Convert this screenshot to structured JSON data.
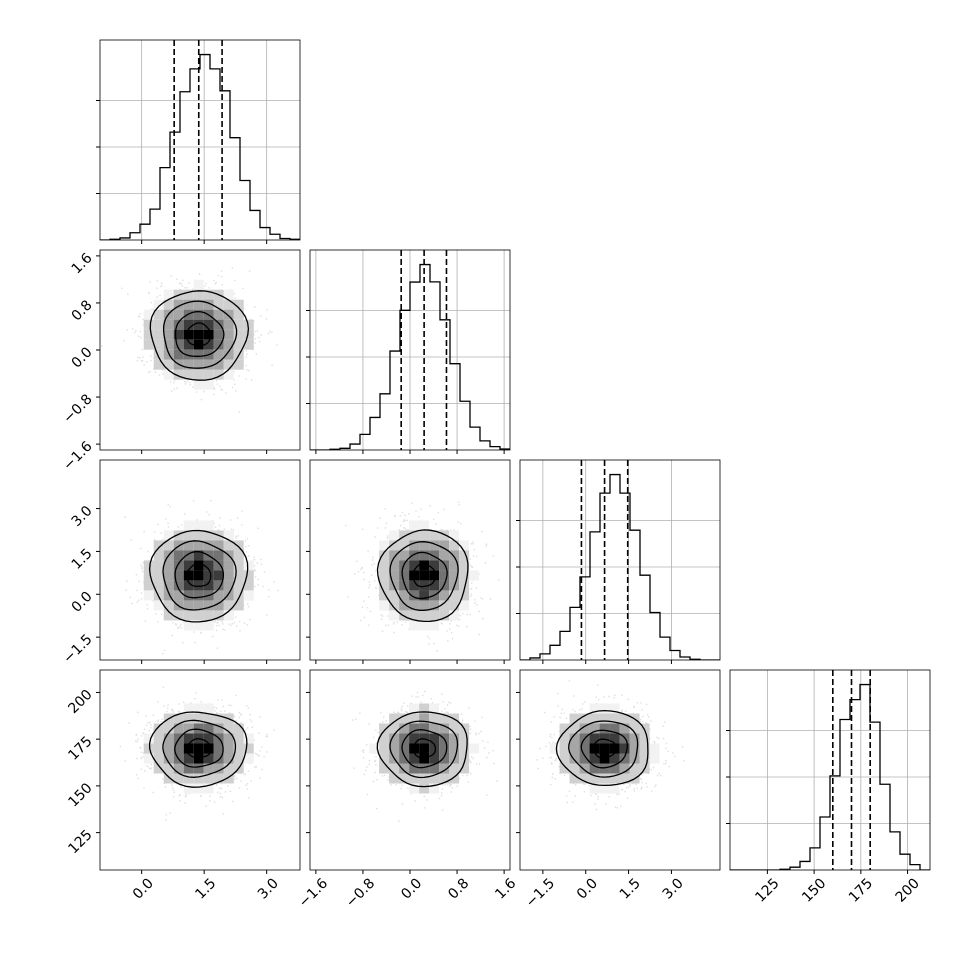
{
  "chart_data": {
    "type": "corner",
    "parameters": [
      {
        "range": [
          -1.0,
          3.8
        ],
        "ticks": [
          0.0,
          1.5,
          3.0
        ],
        "tick_labels": [
          "0.0",
          "1.5",
          "3.0"
        ],
        "quantiles": [
          0.78,
          1.37,
          1.93
        ],
        "hist_bins": [
          -1.0,
          -0.76,
          -0.52,
          -0.28,
          -0.04,
          0.2,
          0.44,
          0.68,
          0.92,
          1.16,
          1.4,
          1.64,
          1.88,
          2.12,
          2.36,
          2.6,
          2.84,
          3.08,
          3.32,
          3.56,
          3.8
        ],
        "hist_heights": [
          0.0,
          0.004,
          0.011,
          0.039,
          0.085,
          0.166,
          0.389,
          0.58,
          0.797,
          0.92,
          0.997,
          0.92,
          0.802,
          0.55,
          0.32,
          0.159,
          0.067,
          0.031,
          0.008,
          0.004
        ],
        "hist_yticks": [
          0.25,
          0.5,
          0.75
        ]
      },
      {
        "range": [
          -1.7,
          1.7
        ],
        "ticks": [
          -1.6,
          -0.8,
          0.0,
          0.8,
          1.6
        ],
        "tick_labels": [
          "−1.6",
          "−0.8",
          "0.0",
          "0.8",
          "1.6"
        ],
        "quantiles": [
          -0.15,
          0.24,
          0.62
        ],
        "hist_bins": [
          -1.7,
          -1.53,
          -1.36,
          -1.19,
          -1.02,
          -0.85,
          -0.68,
          -0.51,
          -0.34,
          -0.17,
          0.0,
          0.17,
          0.34,
          0.51,
          0.68,
          0.85,
          1.02,
          1.19,
          1.36,
          1.53,
          1.7
        ],
        "hist_heights": [
          0.0,
          0.0,
          0.004,
          0.009,
          0.032,
          0.084,
          0.175,
          0.302,
          0.532,
          0.751,
          0.903,
          0.997,
          0.904,
          0.7,
          0.464,
          0.262,
          0.123,
          0.049,
          0.018,
          0.005
        ],
        "hist_yticks": [
          0.25,
          0.5,
          0.75
        ]
      },
      {
        "range": [
          -2.3,
          4.7
        ],
        "ticks": [
          -1.5,
          0.0,
          1.5,
          3.0
        ],
        "tick_labels": [
          "−1.5",
          "0.0",
          "1.5",
          "3.0"
        ],
        "quantiles": [
          -0.15,
          0.66,
          1.47
        ],
        "hist_bins": [
          -2.3,
          -1.95,
          -1.6,
          -1.25,
          -0.9,
          -0.55,
          -0.2,
          0.15,
          0.5,
          0.85,
          1.2,
          1.55,
          1.9,
          2.25,
          2.6,
          2.95,
          3.3,
          3.65,
          4.0,
          4.35,
          4.7
        ],
        "hist_heights": [
          0.0,
          0.011,
          0.033,
          0.079,
          0.154,
          0.283,
          0.447,
          0.689,
          0.897,
          0.997,
          0.897,
          0.698,
          0.456,
          0.255,
          0.123,
          0.051,
          0.016,
          0.004,
          0.0,
          0.0
        ],
        "hist_yticks": [
          0.25,
          0.5,
          0.75
        ]
      },
      {
        "range": [
          105,
          212
        ],
        "ticks": [
          125,
          150,
          175,
          200
        ],
        "tick_labels": [
          "125",
          "150",
          "175",
          "200"
        ],
        "quantiles": [
          160,
          170,
          180
        ],
        "hist_bins": [
          105,
          110.35,
          115.7,
          121.05,
          126.4,
          131.75,
          137.1,
          142.45,
          147.8,
          153.15,
          158.5,
          163.85,
          169.2,
          174.55,
          179.9,
          185.25,
          190.6,
          195.95,
          201.3,
          206.65,
          212
        ],
        "hist_heights": [
          0.0,
          0.0,
          0.0,
          0.0,
          0.0,
          0.004,
          0.015,
          0.046,
          0.119,
          0.285,
          0.506,
          0.809,
          0.916,
          0.997,
          0.795,
          0.461,
          0.205,
          0.085,
          0.029,
          0.0
        ],
        "hist_yticks": [
          0.25,
          0.5,
          0.75
        ]
      }
    ],
    "pairs": [
      {
        "row": 1,
        "col": 0,
        "center": [
          1.37,
          0.26
        ],
        "sigma": [
          0.58,
          0.38
        ],
        "contour_levels": [
          0.5,
          1.0,
          1.5,
          2.0
        ]
      },
      {
        "row": 2,
        "col": 0,
        "center": [
          1.37,
          0.66
        ],
        "sigma": [
          0.58,
          0.8
        ],
        "contour_levels": [
          0.5,
          1.0,
          1.5,
          2.0
        ]
      },
      {
        "row": 2,
        "col": 1,
        "center": [
          0.24,
          0.66
        ],
        "sigma": [
          0.38,
          0.8
        ],
        "contour_levels": [
          0.5,
          1.0,
          1.5,
          2.0
        ]
      },
      {
        "row": 3,
        "col": 0,
        "center": [
          1.37,
          170.0
        ],
        "sigma": [
          0.58,
          10.0
        ],
        "contour_levels": [
          0.5,
          1.0,
          1.5,
          2.0
        ]
      },
      {
        "row": 3,
        "col": 1,
        "center": [
          0.24,
          170.0
        ],
        "sigma": [
          0.38,
          10.0
        ],
        "contour_levels": [
          0.5,
          1.0,
          1.5,
          2.0
        ]
      },
      {
        "row": 3,
        "col": 2,
        "center": [
          0.66,
          170.0
        ],
        "sigma": [
          0.8,
          10.0
        ],
        "contour_levels": [
          0.5,
          1.0,
          1.5,
          2.0
        ]
      }
    ],
    "grid": true,
    "colors": {
      "line": "#000000",
      "grid": "#b0b0b0",
      "scatter": "#8a8a8a",
      "background": "#ffffff"
    }
  }
}
